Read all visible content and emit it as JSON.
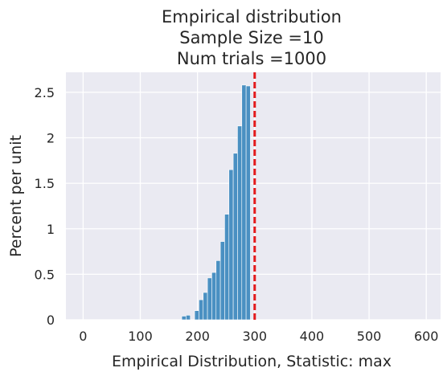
{
  "chart_data": {
    "type": "bar",
    "title": [
      "Empirical distribution",
      "Sample Size =10",
      "Num trials =1000"
    ],
    "xlabel": "Empirical Distribution, Statistic: max",
    "ylabel": "Percent per unit",
    "xlim": [
      -30,
      625
    ],
    "ylim": [
      0,
      2.72
    ],
    "x_ticks": [
      0,
      100,
      200,
      300,
      400,
      500,
      600
    ],
    "y_ticks": [
      0,
      0.5,
      1,
      1.5,
      2,
      2.5
    ],
    "y_tick_labels": [
      "0",
      "0.5",
      "1",
      "1.5",
      "2",
      "2.5"
    ],
    "grid": true,
    "bin_width": 7.5,
    "bins": [
      {
        "x0": 172.5,
        "value": 0.04
      },
      {
        "x0": 180,
        "value": 0.05
      },
      {
        "x0": 195,
        "value": 0.1
      },
      {
        "x0": 202.5,
        "value": 0.22
      },
      {
        "x0": 210,
        "value": 0.3
      },
      {
        "x0": 217.5,
        "value": 0.46
      },
      {
        "x0": 225,
        "value": 0.52
      },
      {
        "x0": 232.5,
        "value": 0.65
      },
      {
        "x0": 240,
        "value": 0.86
      },
      {
        "x0": 247.5,
        "value": 1.16
      },
      {
        "x0": 255,
        "value": 1.65
      },
      {
        "x0": 262.5,
        "value": 1.83
      },
      {
        "x0": 270,
        "value": 2.13
      },
      {
        "x0": 277.5,
        "value": 2.58
      },
      {
        "x0": 285,
        "value": 2.57
      }
    ],
    "bar_color": "#4a90c2",
    "reference_line": {
      "x": 300,
      "color": "#e31a1c",
      "style": "dashed"
    },
    "background_color": "#eaeaf2",
    "grid_color": "#ffffff"
  }
}
